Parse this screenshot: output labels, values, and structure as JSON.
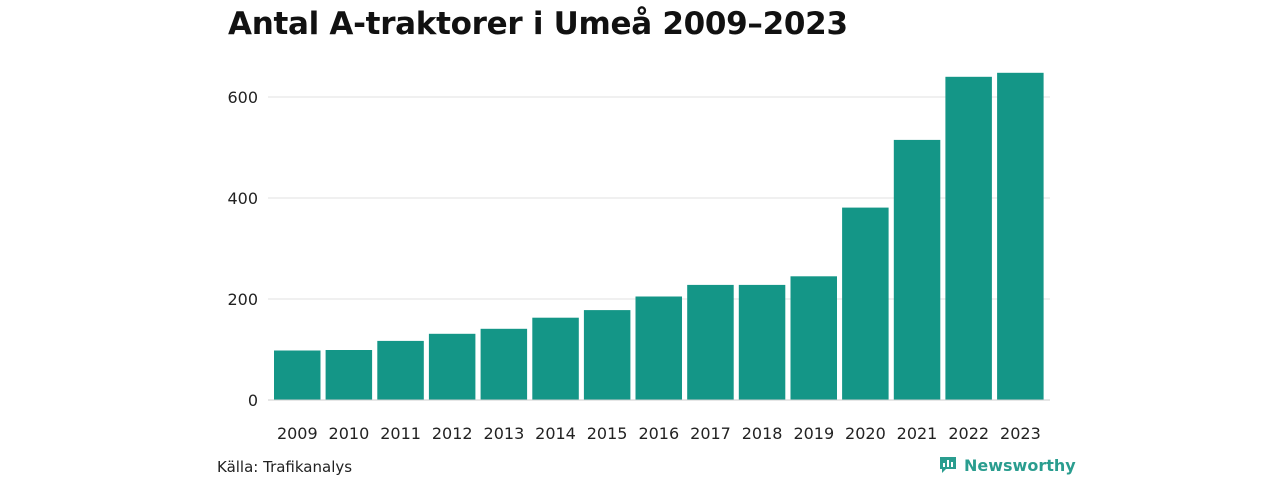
{
  "chart_data": {
    "type": "bar",
    "title": "Antal A-traktorer i Umeå 2009–2023",
    "categories": [
      "2009",
      "2010",
      "2011",
      "2012",
      "2013",
      "2014",
      "2015",
      "2016",
      "2017",
      "2018",
      "2019",
      "2020",
      "2021",
      "2022",
      "2023"
    ],
    "values": [
      98,
      99,
      117,
      131,
      141,
      163,
      178,
      205,
      228,
      228,
      245,
      381,
      515,
      640,
      648
    ],
    "yticks": [
      0,
      200,
      400,
      600
    ],
    "ylim": [
      0,
      650
    ],
    "xlabel": "",
    "ylabel": "",
    "grid": true,
    "bar_color": "#149687"
  },
  "source": "Källa: Trafikanalys",
  "brand": {
    "name": "Newsworthy",
    "icon": "newsworthy-logo-icon",
    "color": "#2a9d8f"
  }
}
